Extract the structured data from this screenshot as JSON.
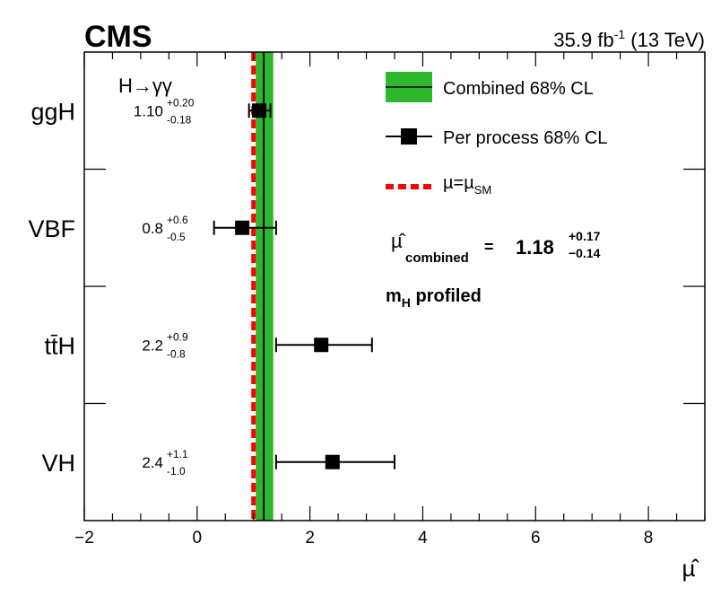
{
  "chart_data": {
    "type": "scatter",
    "experiment": "CMS",
    "luminosity": {
      "value": "35.9 fb",
      "exp": "-1",
      "energy": " (13 TeV)"
    },
    "channel": "H→γγ",
    "xlabel": "µ̂",
    "xlim": [
      -2,
      9
    ],
    "xticks": [
      -2,
      0,
      2,
      4,
      6,
      8
    ],
    "xtick_labels": [
      "−2",
      "0",
      "2",
      "4",
      "6",
      "8"
    ],
    "categories": [
      "ggH",
      "VBF",
      "tt̄H",
      "VH"
    ],
    "points": [
      {
        "process": "ggH",
        "label_prefix": "ggH",
        "label_suffix": "",
        "mu": 1.1,
        "up": 0.2,
        "down": 0.18,
        "mu_text": "1.10",
        "up_text": "+0.20",
        "down_text": "-0.18"
      },
      {
        "process": "VBF",
        "label_prefix": "VBF",
        "label_suffix": "",
        "mu": 0.8,
        "up": 0.6,
        "down": 0.5,
        "mu_text": "0.8",
        "up_text": "+0.6",
        "down_text": "-0.5"
      },
      {
        "process": "ttH",
        "label_prefix": "tt̄",
        "label_suffix": "H",
        "mu": 2.2,
        "up": 0.9,
        "down": 0.8,
        "mu_text": "2.2",
        "up_text": "+0.9",
        "down_text": "-0.8"
      },
      {
        "process": "VH",
        "label_prefix": "VH",
        "label_suffix": "",
        "mu": 2.4,
        "up": 1.1,
        "down": 1.0,
        "mu_text": "2.4",
        "up_text": "+1.1",
        "down_text": "-1.0"
      }
    ],
    "combined": {
      "mu": 1.18,
      "up": 0.17,
      "down": 0.14,
      "mu_text": "1.18",
      "up_text": "+0.17",
      "down_text": "−0.14",
      "label": "µ̂",
      "sub": "combined",
      "eq": "="
    },
    "sm_value": 1.0,
    "note": {
      "main": "m",
      "sub": "H",
      "rest": " profiled"
    },
    "legend": {
      "position": "top-right",
      "entries": [
        {
          "label": "Combined 68% CL",
          "style": "band"
        },
        {
          "label": "Per process 68% CL",
          "style": "marker"
        },
        {
          "label": "µ=µ",
          "sub": "SM",
          "style": "dashed"
        }
      ]
    },
    "colors": {
      "band": "#2db82d",
      "sm_line": "#ff0000",
      "marker": "#000000"
    }
  }
}
